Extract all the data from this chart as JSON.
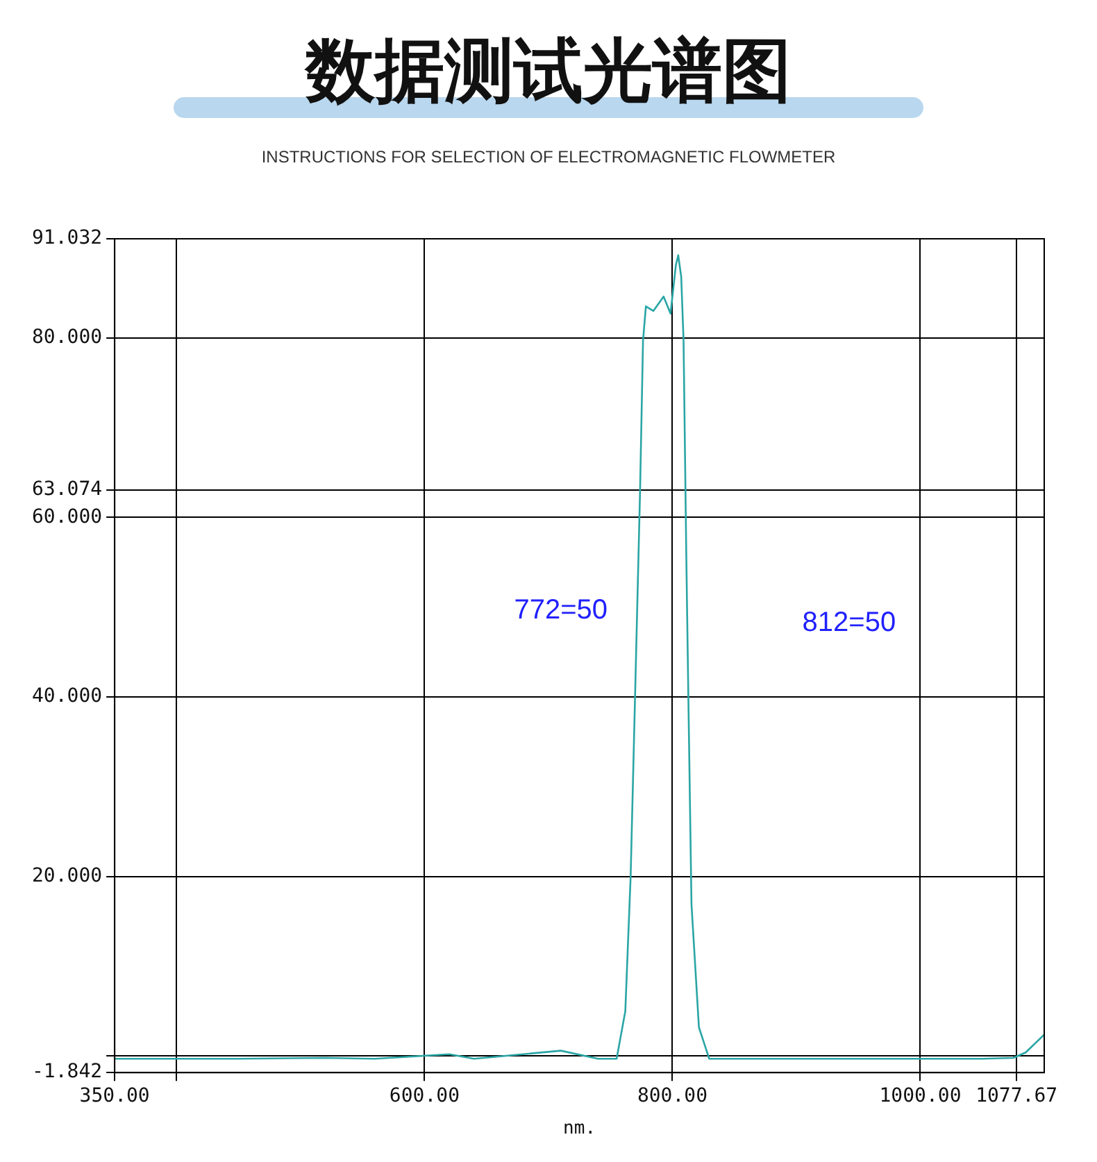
{
  "chart_data": {
    "type": "line",
    "title": "数据测试光谱图",
    "subtitle": "INSTRUCTIONS FOR SELECTION OF ELECTROMAGNETIC FLOWMETER",
    "xlabel": "nm.",
    "series": [
      {
        "color": "#2aa5a5",
        "x": [
          350,
          450,
          520,
          560,
          620,
          640,
          710,
          740,
          755,
          762,
          766.3,
          769.9,
          773.9,
          776.3,
          778.6,
          784.6,
          792.9,
          798.5,
          802.8,
          804.7,
          807.1,
          809,
          811.2,
          813.1,
          815.4,
          821.4,
          829.7,
          1050,
          1075,
          1085,
          1100
        ],
        "values": [
          -0.3,
          -0.3,
          -0.2,
          -0.3,
          0.2,
          -0.3,
          0.6,
          -0.3,
          -0.3,
          5.0,
          20,
          40.2,
          62.9,
          79.7,
          83.5,
          83.0,
          84.6,
          82.7,
          88.1,
          89.2,
          86.8,
          79.7,
          55.8,
          37.9,
          16.9,
          3.2,
          -0.3,
          -0.3,
          -0.2,
          0.4,
          2.4
        ]
      }
    ],
    "annotations": [
      "772=50",
      "812=50"
    ],
    "xlim": [
      350,
      1100
    ],
    "xticks": [
      {
        "value": 350,
        "label": "350.00"
      },
      {
        "value": 400,
        "label": null
      },
      {
        "value": 600,
        "label": "600.00"
      },
      {
        "value": 800,
        "label": "800.00"
      },
      {
        "value": 1000,
        "label": "1000.00"
      },
      {
        "value": 1077.67,
        "label": "1077.67"
      }
    ],
    "ylim": [
      -1.842,
      91.032
    ],
    "yticks": [
      {
        "value": -1.842,
        "label": "-1.842"
      },
      {
        "value": 0,
        "label": null
      },
      {
        "value": 20,
        "label": "20.000"
      },
      {
        "value": 40,
        "label": "40.000"
      },
      {
        "value": 60,
        "label": "60.000"
      },
      {
        "value": 63.074,
        "label": "63.074"
      },
      {
        "value": 80,
        "label": "80.000"
      },
      {
        "value": 91.032,
        "label": "91.032"
      }
    ],
    "grid": true,
    "legend": false,
    "marker": "none",
    "line_style": "solid"
  }
}
